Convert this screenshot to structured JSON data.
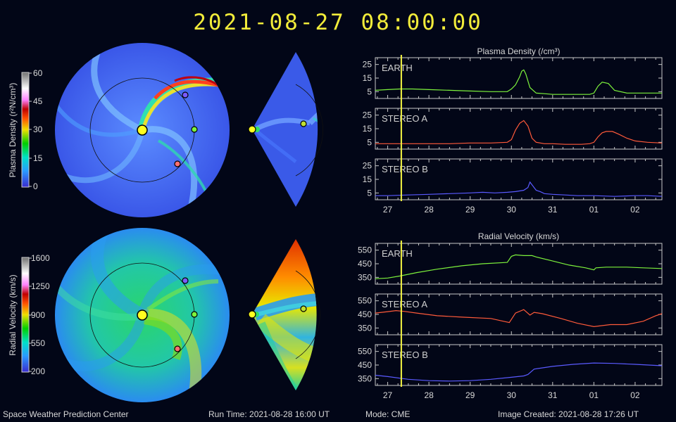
{
  "header": {
    "timestamp": "2021-08-27  08:00:00"
  },
  "footer": {
    "center_name": "Space Weather Prediction Center",
    "run_time": "Run Time: 2021-08-28 16:00 UT",
    "mode": "Mode: CME",
    "image_created": "Image Created: 2021-08-28 17:26 UT"
  },
  "colorbars": [
    {
      "label": "Plasma Density (r²N/cm³)",
      "ticks": [
        "60",
        "45",
        "30",
        "15",
        "0"
      ],
      "colors": [
        "#3a2bd0",
        "#2a9bff",
        "#00e0c8",
        "#00d000",
        "#f0e000",
        "#ff5000",
        "#c00000",
        "#ffffff",
        "#a0a0a0"
      ]
    },
    {
      "label": "Radial Velocity (km/s)",
      "ticks": [
        "1600",
        "1250",
        "900",
        "550",
        "200"
      ],
      "colors": [
        "#3a2bd0",
        "#2a9bff",
        "#00e0c8",
        "#00d000",
        "#f0e000",
        "#ff5000",
        "#c00000",
        "#ffffff",
        "#a0a0a0"
      ]
    }
  ],
  "colors": {
    "earth": "#7df23c",
    "stereo_a": "#ff5a3a",
    "stereo_b": "#5a5aff",
    "time_marker": "#f5f542",
    "axes": "#c8c8c8",
    "background": "#020617"
  },
  "chart_data": [
    {
      "type": "line",
      "title": "Plasma Density (/cm³)",
      "x_tick_labels": [
        "27",
        "28",
        "29",
        "30",
        "31",
        "01",
        "02"
      ],
      "x_range_days": [
        26.7,
        33.65
      ],
      "time_marker_day": 27.33,
      "ticks": [
        "25",
        "15",
        "5"
      ],
      "panels": [
        {
          "name": "EARTH",
          "color": "#7df23c",
          "ylim": [
            0,
            30
          ],
          "x": [
            26.7,
            27.0,
            27.3,
            27.6,
            28.0,
            28.5,
            29.0,
            29.5,
            29.9,
            30.0,
            30.1,
            30.2,
            30.25,
            30.3,
            30.35,
            30.45,
            30.6,
            30.8,
            31.0,
            31.2,
            31.4,
            31.6,
            31.7,
            31.8,
            31.9,
            32.0,
            32.1,
            32.2,
            32.35,
            32.5,
            32.8,
            33.2,
            33.65
          ],
          "y": [
            6,
            6.5,
            7,
            7,
            6.5,
            6,
            5.5,
            5,
            5,
            7,
            10,
            16,
            20,
            21,
            18,
            8,
            4,
            3.5,
            3,
            3,
            3,
            3,
            3,
            3,
            3,
            4,
            9,
            12,
            11,
            6,
            4,
            4,
            4
          ]
        },
        {
          "name": "STEREO A",
          "color": "#ff5a3a",
          "ylim": [
            0,
            30
          ],
          "x": [
            26.7,
            27.0,
            27.5,
            28.0,
            28.5,
            29.0,
            29.5,
            29.9,
            30.0,
            30.1,
            30.2,
            30.3,
            30.4,
            30.5,
            30.6,
            30.8,
            31.0,
            31.3,
            31.5,
            31.7,
            31.9,
            32.0,
            32.1,
            32.2,
            32.3,
            32.45,
            32.6,
            32.8,
            33.0,
            33.3,
            33.65
          ],
          "y": [
            4,
            4,
            4,
            4,
            4,
            4.5,
            4.5,
            5,
            7,
            14,
            19,
            21,
            17,
            8,
            5,
            4,
            4,
            3.5,
            3.5,
            3.5,
            4,
            5,
            9,
            12,
            13,
            13,
            11,
            8,
            6,
            5,
            4.5
          ]
        },
        {
          "name": "STEREO B",
          "color": "#5a5aff",
          "ylim": [
            0,
            30
          ],
          "x": [
            26.7,
            27.0,
            27.5,
            28.0,
            28.5,
            29.0,
            29.3,
            29.6,
            29.9,
            30.1,
            30.3,
            30.4,
            30.45,
            30.5,
            30.6,
            30.7,
            30.8,
            31.0,
            31.3,
            31.6,
            32.0,
            32.5,
            33.0,
            33.3,
            33.65
          ],
          "y": [
            3,
            3,
            3.5,
            4,
            4.5,
            5,
            5.5,
            5,
            5.5,
            6,
            7,
            9,
            13,
            11,
            7,
            6,
            4.5,
            4,
            3.5,
            3,
            3,
            2.5,
            3,
            3,
            2.5
          ]
        }
      ]
    },
    {
      "type": "line",
      "title": "Radial Velocity (km/s)",
      "x_tick_labels": [
        "27",
        "28",
        "29",
        "30",
        "31",
        "01",
        "02"
      ],
      "x_range_days": [
        26.7,
        33.65
      ],
      "time_marker_day": 27.33,
      "ticks": [
        "550",
        "450",
        "350"
      ],
      "panels": [
        {
          "name": "EARTH",
          "color": "#7df23c",
          "ylim": [
            300,
            600
          ],
          "x": [
            26.7,
            27.0,
            27.3,
            27.7,
            28.2,
            28.8,
            29.3,
            29.9,
            30.0,
            30.1,
            30.3,
            30.5,
            30.6,
            31.0,
            31.4,
            31.8,
            32.0,
            32.05,
            32.3,
            32.8,
            33.2,
            33.65
          ],
          "y": [
            340,
            345,
            360,
            385,
            410,
            435,
            450,
            460,
            505,
            515,
            510,
            510,
            500,
            470,
            440,
            420,
            405,
            420,
            425,
            425,
            420,
            415
          ]
        },
        {
          "name": "STEREO A",
          "color": "#ff5a3a",
          "ylim": [
            300,
            600
          ],
          "x": [
            26.7,
            27.0,
            27.2,
            27.4,
            27.7,
            28.2,
            28.8,
            29.5,
            29.8,
            29.95,
            30.1,
            30.3,
            30.45,
            30.55,
            30.75,
            31.2,
            31.6,
            32.0,
            32.4,
            32.8,
            33.2,
            33.5,
            33.65
          ],
          "y": [
            460,
            470,
            478,
            472,
            460,
            440,
            430,
            420,
            400,
            390,
            460,
            485,
            445,
            465,
            455,
            420,
            385,
            360,
            375,
            375,
            400,
            440,
            455
          ]
        },
        {
          "name": "STEREO B",
          "color": "#5a5aff",
          "ylim": [
            300,
            600
          ],
          "x": [
            26.7,
            27.0,
            27.5,
            28.0,
            28.5,
            29.0,
            29.5,
            30.0,
            30.3,
            30.4,
            30.55,
            31.0,
            31.5,
            32.0,
            32.5,
            33.0,
            33.65
          ],
          "y": [
            375,
            365,
            345,
            335,
            332,
            335,
            345,
            360,
            370,
            380,
            420,
            440,
            455,
            465,
            462,
            455,
            445
          ]
        }
      ]
    }
  ]
}
